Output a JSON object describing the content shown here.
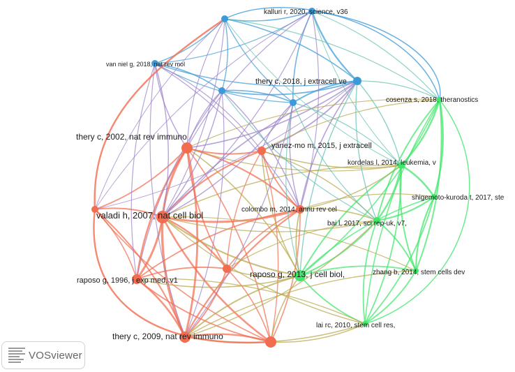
{
  "colors": {
    "red_cluster": "#f26c4f",
    "green_cluster": "#3ee66a",
    "blue_cluster": "#3c9ad8",
    "purple_edge": "#9a7fc8",
    "olive_edge": "#b8a84c"
  },
  "nodes": [
    {
      "id": "valadi",
      "label": "valadi h, 2007, nat cell biol",
      "cluster": "red"
    },
    {
      "id": "thery2002",
      "label": "thery c, 2002, nat rev immuno",
      "cluster": "red"
    },
    {
      "id": "thery2009",
      "label": "thery c, 2009, nat rev immuno",
      "cluster": "red"
    },
    {
      "id": "raposo1996",
      "label": "raposo g, 1996, j exp med, v1",
      "cluster": "red"
    },
    {
      "id": "colombo",
      "label": "colombo m, 2014, annu rev cel",
      "cluster": "red"
    },
    {
      "id": "yanez",
      "label": "yanez-mo m, 2015, j extracell",
      "cluster": "red"
    },
    {
      "id": "raposo2013",
      "label": "raposo g, 2013, j cell biol,",
      "cluster": "green"
    },
    {
      "id": "kordelas",
      "label": "kordelas l, 2014, leukemia, v",
      "cluster": "green"
    },
    {
      "id": "shigemoto",
      "label": "shigemoto-kuroda t, 2017, ste",
      "cluster": "green"
    },
    {
      "id": "cosenza",
      "label": "cosenza s, 2018, theranostics",
      "cluster": "green"
    },
    {
      "id": "bai",
      "label": "bai l, 2017, sci rep-uk, v7,",
      "cluster": "green"
    },
    {
      "id": "zhang",
      "label": "zhang b, 2014, stem cells dev",
      "cluster": "green"
    },
    {
      "id": "lai",
      "label": "lai rc, 2010, stem cell res,",
      "cluster": "green"
    },
    {
      "id": "kalluri",
      "label": "kalluri r, 2020, science, v36",
      "cluster": "blue"
    },
    {
      "id": "vanniel",
      "label": "van niel g, 2018, nat rev mol",
      "cluster": "blue"
    },
    {
      "id": "thery2018",
      "label": "thery c, 2018, j extracell ve",
      "cluster": "blue"
    },
    {
      "id": "red_u1",
      "label": "",
      "cluster": "red"
    },
    {
      "id": "red_u2",
      "label": "",
      "cluster": "red"
    },
    {
      "id": "red_u3",
      "label": "",
      "cluster": "red"
    },
    {
      "id": "blue_u1",
      "label": "",
      "cluster": "blue"
    },
    {
      "id": "blue_u2",
      "label": "",
      "cluster": "blue"
    },
    {
      "id": "blue_u3",
      "label": "",
      "cluster": "blue"
    }
  ],
  "logo": {
    "text": "VOSviewer"
  }
}
